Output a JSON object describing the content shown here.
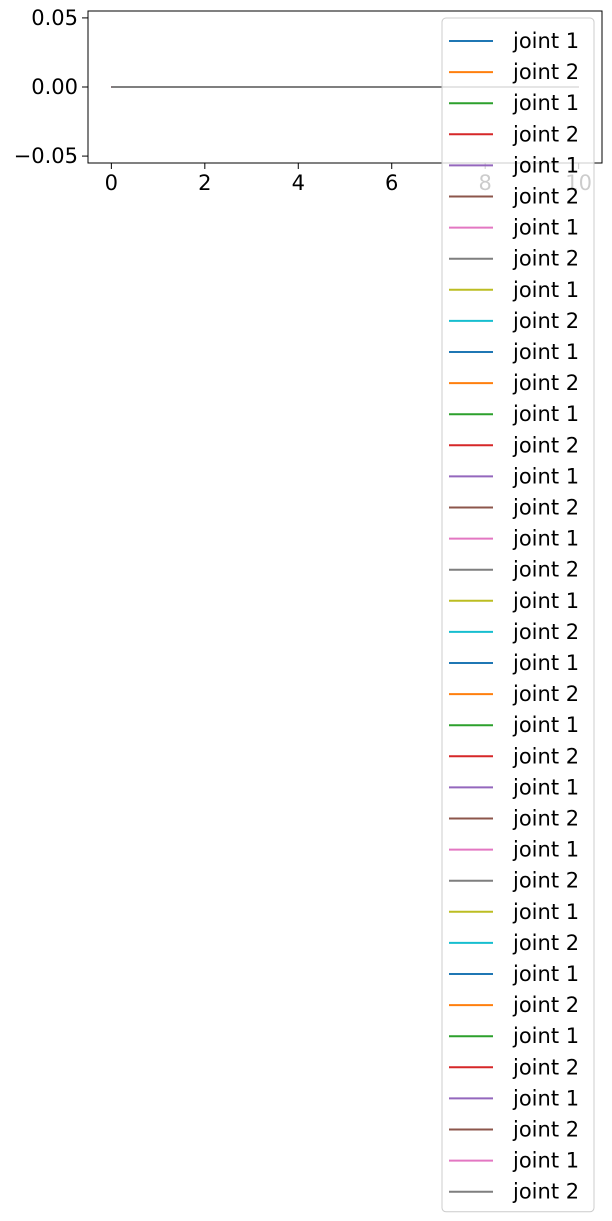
{
  "chart_data": {
    "type": "line",
    "title": "",
    "xlabel": "",
    "ylabel": "",
    "xlim": [
      -0.5,
      10.5
    ],
    "ylim": [
      -0.055,
      0.055
    ],
    "xticks": [
      0,
      2,
      4,
      6,
      8,
      10
    ],
    "xtick_labels": [
      "0",
      "2",
      "4",
      "6",
      "8",
      "10"
    ],
    "yticks": [
      0.05,
      0.0,
      -0.05
    ],
    "ytick_labels": [
      "0.05",
      "0.00",
      "−0.05"
    ],
    "grid": false,
    "legend_position": "upper-right",
    "x": [
      0,
      10
    ],
    "series": [
      {
        "name": "joint 1",
        "color": "#1f77b4",
        "values": [
          0,
          0
        ]
      },
      {
        "name": "joint 2",
        "color": "#ff7f0e",
        "values": [
          0,
          0
        ]
      },
      {
        "name": "joint 1",
        "color": "#2ca02c",
        "values": [
          0,
          0
        ]
      },
      {
        "name": "joint 2",
        "color": "#d62728",
        "values": [
          0,
          0
        ]
      },
      {
        "name": "joint 1",
        "color": "#9467bd",
        "values": [
          0,
          0
        ]
      },
      {
        "name": "joint 2",
        "color": "#8c564b",
        "values": [
          0,
          0
        ]
      },
      {
        "name": "joint 1",
        "color": "#e377c2",
        "values": [
          0,
          0
        ]
      },
      {
        "name": "joint 2",
        "color": "#7f7f7f",
        "values": [
          0,
          0
        ]
      },
      {
        "name": "joint 1",
        "color": "#bcbd22",
        "values": [
          0,
          0
        ]
      },
      {
        "name": "joint 2",
        "color": "#17becf",
        "values": [
          0,
          0
        ]
      },
      {
        "name": "joint 1",
        "color": "#1f77b4",
        "values": [
          0,
          0
        ]
      },
      {
        "name": "joint 2",
        "color": "#ff7f0e",
        "values": [
          0,
          0
        ]
      },
      {
        "name": "joint 1",
        "color": "#2ca02c",
        "values": [
          0,
          0
        ]
      },
      {
        "name": "joint 2",
        "color": "#d62728",
        "values": [
          0,
          0
        ]
      },
      {
        "name": "joint 1",
        "color": "#9467bd",
        "values": [
          0,
          0
        ]
      },
      {
        "name": "joint 2",
        "color": "#8c564b",
        "values": [
          0,
          0
        ]
      },
      {
        "name": "joint 1",
        "color": "#e377c2",
        "values": [
          0,
          0
        ]
      },
      {
        "name": "joint 2",
        "color": "#7f7f7f",
        "values": [
          0,
          0
        ]
      },
      {
        "name": "joint 1",
        "color": "#bcbd22",
        "values": [
          0,
          0
        ]
      },
      {
        "name": "joint 2",
        "color": "#17becf",
        "values": [
          0,
          0
        ]
      },
      {
        "name": "joint 1",
        "color": "#1f77b4",
        "values": [
          0,
          0
        ]
      },
      {
        "name": "joint 2",
        "color": "#ff7f0e",
        "values": [
          0,
          0
        ]
      },
      {
        "name": "joint 1",
        "color": "#2ca02c",
        "values": [
          0,
          0
        ]
      },
      {
        "name": "joint 2",
        "color": "#d62728",
        "values": [
          0,
          0
        ]
      },
      {
        "name": "joint 1",
        "color": "#9467bd",
        "values": [
          0,
          0
        ]
      },
      {
        "name": "joint 2",
        "color": "#8c564b",
        "values": [
          0,
          0
        ]
      },
      {
        "name": "joint 1",
        "color": "#e377c2",
        "values": [
          0,
          0
        ]
      },
      {
        "name": "joint 2",
        "color": "#7f7f7f",
        "values": [
          0,
          0
        ]
      },
      {
        "name": "joint 1",
        "color": "#bcbd22",
        "values": [
          0,
          0
        ]
      },
      {
        "name": "joint 2",
        "color": "#17becf",
        "values": [
          0,
          0
        ]
      },
      {
        "name": "joint 1",
        "color": "#1f77b4",
        "values": [
          0,
          0
        ]
      },
      {
        "name": "joint 2",
        "color": "#ff7f0e",
        "values": [
          0,
          0
        ]
      },
      {
        "name": "joint 1",
        "color": "#2ca02c",
        "values": [
          0,
          0
        ]
      },
      {
        "name": "joint 2",
        "color": "#d62728",
        "values": [
          0,
          0
        ]
      },
      {
        "name": "joint 1",
        "color": "#9467bd",
        "values": [
          0,
          0
        ]
      },
      {
        "name": "joint 2",
        "color": "#8c564b",
        "values": [
          0,
          0
        ]
      },
      {
        "name": "joint 1",
        "color": "#e377c2",
        "values": [
          0,
          0
        ]
      },
      {
        "name": "joint 2",
        "color": "#7f7f7f",
        "values": [
          0,
          0
        ]
      }
    ]
  }
}
